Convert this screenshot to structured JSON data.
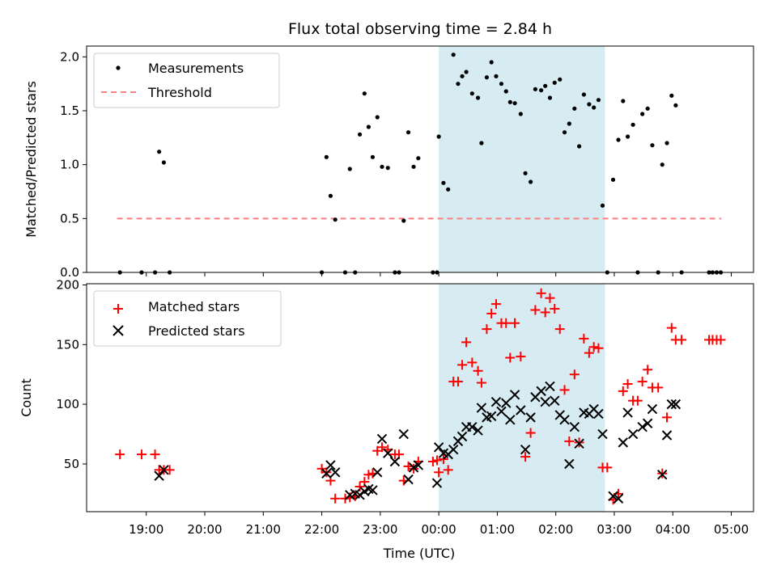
{
  "chart_data": [
    {
      "type": "scatter",
      "title": "Flux total observing time = 2.84 h",
      "ylabel": "Matched/Predicted stars",
      "ylim": [
        0,
        2.1
      ],
      "yticks": [
        "0.0",
        "0.5",
        "1.0",
        "1.5",
        "2.0"
      ],
      "ytick_values": [
        0,
        0.5,
        1.0,
        1.5,
        2.0
      ],
      "shaded_span_hours": [
        24.0,
        26.84
      ],
      "shade_color": "#add8e6",
      "legend": {
        "placement": "top-left",
        "entries": [
          "Measurements",
          "Threshold"
        ]
      },
      "threshold": {
        "name": "Threshold",
        "value": 0.5,
        "x_range_hours": [
          18.5,
          28.83
        ],
        "color": "#ff7f7f"
      },
      "series": [
        {
          "name": "Measurements",
          "color": "#000000",
          "points": [
            [
              18.55,
              0
            ],
            [
              18.92,
              0
            ],
            [
              19.15,
              0
            ],
            [
              19.22,
              1.12
            ],
            [
              19.3,
              1.02
            ],
            [
              19.4,
              0
            ],
            [
              22.0,
              0
            ],
            [
              22.08,
              1.07
            ],
            [
              22.15,
              0.71
            ],
            [
              22.23,
              0.49
            ],
            [
              22.4,
              0
            ],
            [
              22.48,
              0.96
            ],
            [
              22.57,
              0
            ],
            [
              22.65,
              1.28
            ],
            [
              22.73,
              1.66
            ],
            [
              22.8,
              1.35
            ],
            [
              22.87,
              1.07
            ],
            [
              22.95,
              1.44
            ],
            [
              23.03,
              0.98
            ],
            [
              23.13,
              0.97
            ],
            [
              23.25,
              0
            ],
            [
              23.32,
              0
            ],
            [
              23.4,
              0.48
            ],
            [
              23.48,
              1.3
            ],
            [
              23.57,
              0.98
            ],
            [
              23.65,
              1.06
            ],
            [
              23.9,
              0
            ],
            [
              23.97,
              0
            ],
            [
              24.0,
              1.26
            ],
            [
              24.08,
              0.83
            ],
            [
              24.16,
              0.77
            ],
            [
              24.25,
              2.02
            ],
            [
              24.33,
              1.75
            ],
            [
              24.4,
              1.82
            ],
            [
              24.47,
              1.86
            ],
            [
              24.57,
              1.66
            ],
            [
              24.67,
              1.62
            ],
            [
              24.73,
              1.2
            ],
            [
              24.82,
              1.81
            ],
            [
              24.9,
              1.95
            ],
            [
              24.98,
              1.82
            ],
            [
              25.07,
              1.75
            ],
            [
              25.15,
              1.68
            ],
            [
              25.22,
              1.58
            ],
            [
              25.3,
              1.57
            ],
            [
              25.4,
              1.47
            ],
            [
              25.48,
              0.92
            ],
            [
              25.57,
              0.84
            ],
            [
              25.65,
              1.7
            ],
            [
              25.75,
              1.69
            ],
            [
              25.82,
              1.73
            ],
            [
              25.9,
              1.62
            ],
            [
              25.98,
              1.76
            ],
            [
              26.07,
              1.79
            ],
            [
              26.15,
              1.3
            ],
            [
              26.23,
              1.38
            ],
            [
              26.32,
              1.52
            ],
            [
              26.4,
              1.17
            ],
            [
              26.48,
              1.65
            ],
            [
              26.57,
              1.56
            ],
            [
              26.65,
              1.53
            ],
            [
              26.73,
              1.6
            ],
            [
              26.8,
              0.62
            ],
            [
              26.88,
              0
            ],
            [
              26.98,
              0.86
            ],
            [
              27.07,
              1.23
            ],
            [
              27.15,
              1.59
            ],
            [
              27.23,
              1.26
            ],
            [
              27.32,
              1.37
            ],
            [
              27.4,
              0
            ],
            [
              27.48,
              1.47
            ],
            [
              27.57,
              1.52
            ],
            [
              27.65,
              1.18
            ],
            [
              27.75,
              0
            ],
            [
              27.82,
              1.0
            ],
            [
              27.9,
              1.2
            ],
            [
              27.98,
              1.64
            ],
            [
              28.05,
              1.55
            ],
            [
              28.15,
              0
            ],
            [
              28.62,
              0
            ],
            [
              28.68,
              0
            ],
            [
              28.75,
              0
            ],
            [
              28.82,
              0
            ]
          ]
        }
      ]
    },
    {
      "type": "scatter",
      "xlabel": "Time (UTC)",
      "ylabel": "Count",
      "ylim": [
        10,
        201
      ],
      "xlim_hours": [
        17.98,
        29.38
      ],
      "yticks": [
        "50",
        "100",
        "150",
        "200"
      ],
      "ytick_values": [
        50,
        100,
        150,
        200
      ],
      "xticks": [
        "19:00",
        "20:00",
        "21:00",
        "22:00",
        "23:00",
        "00:00",
        "01:00",
        "02:00",
        "03:00",
        "04:00",
        "05:00"
      ],
      "xtick_values_hours": [
        19,
        20,
        21,
        22,
        23,
        24,
        25,
        26,
        27,
        28,
        29
      ],
      "shaded_span_hours": [
        24.0,
        26.84
      ],
      "shade_color": "#add8e6",
      "legend": {
        "placement": "top-left",
        "entries": [
          "Matched stars",
          "Predicted stars"
        ]
      },
      "series": [
        {
          "name": "Matched stars",
          "marker": "plus",
          "color": "#ff0000",
          "points": [
            [
              18.55,
              58
            ],
            [
              18.92,
              58
            ],
            [
              19.15,
              58
            ],
            [
              19.22,
              45
            ],
            [
              19.3,
              45
            ],
            [
              19.4,
              45
            ],
            [
              22.0,
              46
            ],
            [
              22.08,
              43
            ],
            [
              22.15,
              36
            ],
            [
              22.23,
              21
            ],
            [
              22.4,
              21
            ],
            [
              22.48,
              22
            ],
            [
              22.57,
              23
            ],
            [
              22.65,
              31
            ],
            [
              22.73,
              35
            ],
            [
              22.8,
              41
            ],
            [
              22.87,
              42
            ],
            [
              22.95,
              61
            ],
            [
              23.03,
              64
            ],
            [
              23.13,
              62
            ],
            [
              23.25,
              58
            ],
            [
              23.32,
              58
            ],
            [
              23.4,
              36
            ],
            [
              23.48,
              48
            ],
            [
              23.57,
              46
            ],
            [
              23.65,
              52
            ],
            [
              23.9,
              52
            ],
            [
              23.97,
              53
            ],
            [
              24.0,
              43
            ],
            [
              24.08,
              54
            ],
            [
              24.16,
              45
            ],
            [
              24.25,
              119
            ],
            [
              24.33,
              119
            ],
            [
              24.4,
              133
            ],
            [
              24.47,
              152
            ],
            [
              24.57,
              135
            ],
            [
              24.67,
              128
            ],
            [
              24.73,
              118
            ],
            [
              24.82,
              163
            ],
            [
              24.9,
              176
            ],
            [
              24.98,
              184
            ],
            [
              25.07,
              168
            ],
            [
              25.15,
              168
            ],
            [
              25.22,
              139
            ],
            [
              25.3,
              168
            ],
            [
              25.4,
              140
            ],
            [
              25.48,
              56
            ],
            [
              25.57,
              76
            ],
            [
              25.65,
              179
            ],
            [
              25.75,
              193
            ],
            [
              25.82,
              177
            ],
            [
              25.9,
              189
            ],
            [
              25.98,
              180
            ],
            [
              26.07,
              163
            ],
            [
              26.15,
              112
            ],
            [
              26.23,
              69
            ],
            [
              26.32,
              125
            ],
            [
              26.4,
              68
            ],
            [
              26.48,
              155
            ],
            [
              26.57,
              143
            ],
            [
              26.65,
              148
            ],
            [
              26.73,
              147
            ],
            [
              26.8,
              47
            ],
            [
              26.88,
              47
            ],
            [
              26.98,
              20
            ],
            [
              27.07,
              25
            ],
            [
              27.15,
              111
            ],
            [
              27.23,
              117
            ],
            [
              27.32,
              103
            ],
            [
              27.4,
              103
            ],
            [
              27.48,
              119
            ],
            [
              27.57,
              129
            ],
            [
              27.65,
              114
            ],
            [
              27.75,
              114
            ],
            [
              27.82,
              42
            ],
            [
              27.9,
              89
            ],
            [
              27.98,
              164
            ],
            [
              28.05,
              154
            ],
            [
              28.15,
              154
            ],
            [
              28.62,
              154
            ],
            [
              28.68,
              154
            ],
            [
              28.75,
              154
            ],
            [
              28.82,
              154
            ]
          ]
        },
        {
          "name": "Predicted stars",
          "marker": "x",
          "color": "#000000",
          "points": [
            [
              19.22,
              40
            ],
            [
              19.3,
              45
            ],
            [
              22.08,
              42
            ],
            [
              22.15,
              49
            ],
            [
              22.23,
              43
            ],
            [
              22.48,
              24
            ],
            [
              22.57,
              25
            ],
            [
              22.65,
              24
            ],
            [
              22.73,
              27
            ],
            [
              22.8,
              29
            ],
            [
              22.87,
              28
            ],
            [
              22.95,
              43
            ],
            [
              23.03,
              71
            ],
            [
              23.13,
              59
            ],
            [
              23.25,
              52
            ],
            [
              23.4,
              75
            ],
            [
              23.48,
              37
            ],
            [
              23.57,
              47
            ],
            [
              23.65,
              49
            ],
            [
              23.97,
              34
            ],
            [
              24.0,
              64
            ],
            [
              24.08,
              59
            ],
            [
              24.16,
              58
            ],
            [
              24.25,
              62
            ],
            [
              24.33,
              69
            ],
            [
              24.4,
              73
            ],
            [
              24.47,
              81
            ],
            [
              24.57,
              81
            ],
            [
              24.67,
              78
            ],
            [
              24.73,
              97
            ],
            [
              24.82,
              89
            ],
            [
              24.9,
              90
            ],
            [
              24.98,
              102
            ],
            [
              25.07,
              94
            ],
            [
              25.15,
              101
            ],
            [
              25.22,
              87
            ],
            [
              25.3,
              108
            ],
            [
              25.4,
              95
            ],
            [
              25.48,
              62
            ],
            [
              25.57,
              89
            ],
            [
              25.65,
              106
            ],
            [
              25.75,
              111
            ],
            [
              25.82,
              102
            ],
            [
              25.9,
              115
            ],
            [
              25.98,
              103
            ],
            [
              26.07,
              91
            ],
            [
              26.15,
              87
            ],
            [
              26.23,
              50
            ],
            [
              26.32,
              81
            ],
            [
              26.4,
              67
            ],
            [
              26.48,
              93
            ],
            [
              26.57,
              92
            ],
            [
              26.65,
              96
            ],
            [
              26.73,
              92
            ],
            [
              26.8,
              75
            ],
            [
              26.98,
              23
            ],
            [
              27.07,
              21
            ],
            [
              27.15,
              68
            ],
            [
              27.23,
              93
            ],
            [
              27.32,
              75
            ],
            [
              27.48,
              81
            ],
            [
              27.57,
              84
            ],
            [
              27.65,
              96
            ],
            [
              27.82,
              41
            ],
            [
              27.9,
              74
            ],
            [
              27.98,
              100
            ],
            [
              28.05,
              100
            ]
          ]
        }
      ]
    }
  ]
}
